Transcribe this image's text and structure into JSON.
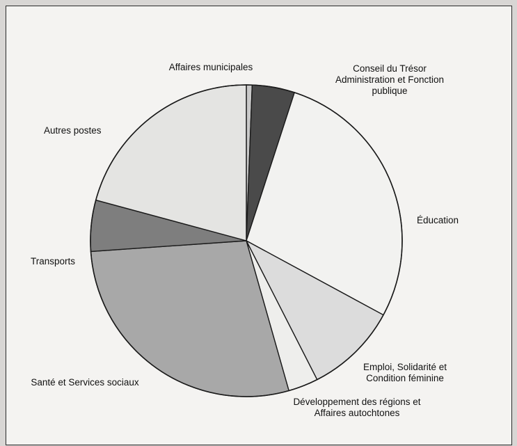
{
  "chart_data": {
    "type": "pie",
    "title": "",
    "start_angle_deg": 0,
    "direction": "clockwise",
    "slices": [
      {
        "label": "Affaires municipales",
        "value": 0.6,
        "color": "#c9c9c9"
      },
      {
        "label": "Conseil du Trésor\nAdministration et Fonction\npublique",
        "value": 4.4,
        "color": "#4a4a4a"
      },
      {
        "label": "Éducation",
        "value": 27.9,
        "color": "#f2f2f0"
      },
      {
        "label": "Emploi, Solidarité et\nCondition féminine",
        "value": 9.6,
        "color": "#dcdcdc"
      },
      {
        "label": "Développement des régions et\nAffaires autochtones",
        "value": 3.1,
        "color": "#eeeeec"
      },
      {
        "label": "Santé et Services sociaux",
        "value": 28.3,
        "color": "#a8a8a8"
      },
      {
        "label": "Transports",
        "value": 5.3,
        "color": "#7e7e7e"
      },
      {
        "label": "Autres postes",
        "value": 20.8,
        "color": "#e4e4e2"
      }
    ]
  }
}
